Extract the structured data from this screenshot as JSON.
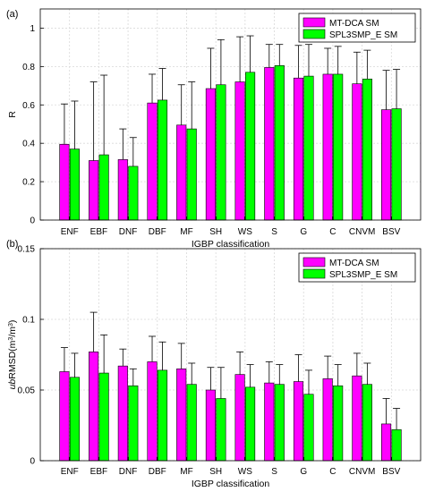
{
  "colors": {
    "series1": "#ff00ff",
    "series2": "#00ff00",
    "error_bar": "#000000",
    "grid": "#d9d9d9",
    "axis": "#000000"
  },
  "chart_data": [
    {
      "type": "bar",
      "panel_label": "(a)",
      "categories": [
        "ENF",
        "EBF",
        "DNF",
        "DBF",
        "MF",
        "SH",
        "WS",
        "S",
        "G",
        "C",
        "CNVM",
        "BSV"
      ],
      "xlabel": "IGBP classification",
      "ylabel": "R",
      "ylim": [
        0,
        1.1
      ],
      "yticks": [
        0,
        0.2,
        0.4,
        0.6,
        0.8,
        1
      ],
      "ytick_labels": [
        "0",
        "0.2",
        "0.4",
        "0.6",
        "0.8",
        "1"
      ],
      "grid": true,
      "legend_position": "top-right",
      "series": [
        {
          "name": "MT-DCA SM",
          "values": [
            0.395,
            0.31,
            0.315,
            0.61,
            0.495,
            0.685,
            0.72,
            0.795,
            0.74,
            0.76,
            0.71,
            0.575
          ],
          "error_upper": [
            0.605,
            0.72,
            0.475,
            0.76,
            0.705,
            0.895,
            0.955,
            0.915,
            0.91,
            0.895,
            0.875,
            0.78
          ]
        },
        {
          "name": "SPL3SMP_E SM",
          "values": [
            0.37,
            0.34,
            0.28,
            0.625,
            0.475,
            0.705,
            0.77,
            0.805,
            0.75,
            0.76,
            0.735,
            0.58
          ],
          "error_upper": [
            0.62,
            0.755,
            0.43,
            0.79,
            0.72,
            0.94,
            0.96,
            0.915,
            0.915,
            0.905,
            0.885,
            0.785
          ]
        }
      ]
    },
    {
      "type": "bar",
      "panel_label": "(b)",
      "categories": [
        "ENF",
        "EBF",
        "DNF",
        "DBF",
        "MF",
        "SH",
        "WS",
        "S",
        "G",
        "C",
        "CNVM",
        "BSV"
      ],
      "xlabel": "IGBP classification",
      "ylabel_parts": [
        "ub",
        "RMSD(m",
        "3",
        "/m",
        "3",
        ")"
      ],
      "ylim": [
        0,
        0.15
      ],
      "yticks": [
        0,
        0.05,
        0.1,
        0.15
      ],
      "ytick_labels": [
        "0",
        "0.05",
        "0.1",
        "0.15"
      ],
      "grid": true,
      "legend_position": "top-right",
      "series": [
        {
          "name": "MT-DCA SM",
          "values": [
            0.063,
            0.077,
            0.067,
            0.07,
            0.065,
            0.05,
            0.061,
            0.055,
            0.056,
            0.058,
            0.06,
            0.026
          ],
          "error_upper": [
            0.08,
            0.105,
            0.079,
            0.088,
            0.083,
            0.066,
            0.077,
            0.07,
            0.075,
            0.074,
            0.076,
            0.044
          ]
        },
        {
          "name": "SPL3SMP_E SM",
          "values": [
            0.059,
            0.062,
            0.053,
            0.064,
            0.054,
            0.044,
            0.052,
            0.054,
            0.047,
            0.053,
            0.054,
            0.022
          ],
          "error_upper": [
            0.076,
            0.089,
            0.065,
            0.084,
            0.069,
            0.066,
            0.068,
            0.068,
            0.064,
            0.068,
            0.069,
            0.037
          ]
        }
      ]
    }
  ]
}
